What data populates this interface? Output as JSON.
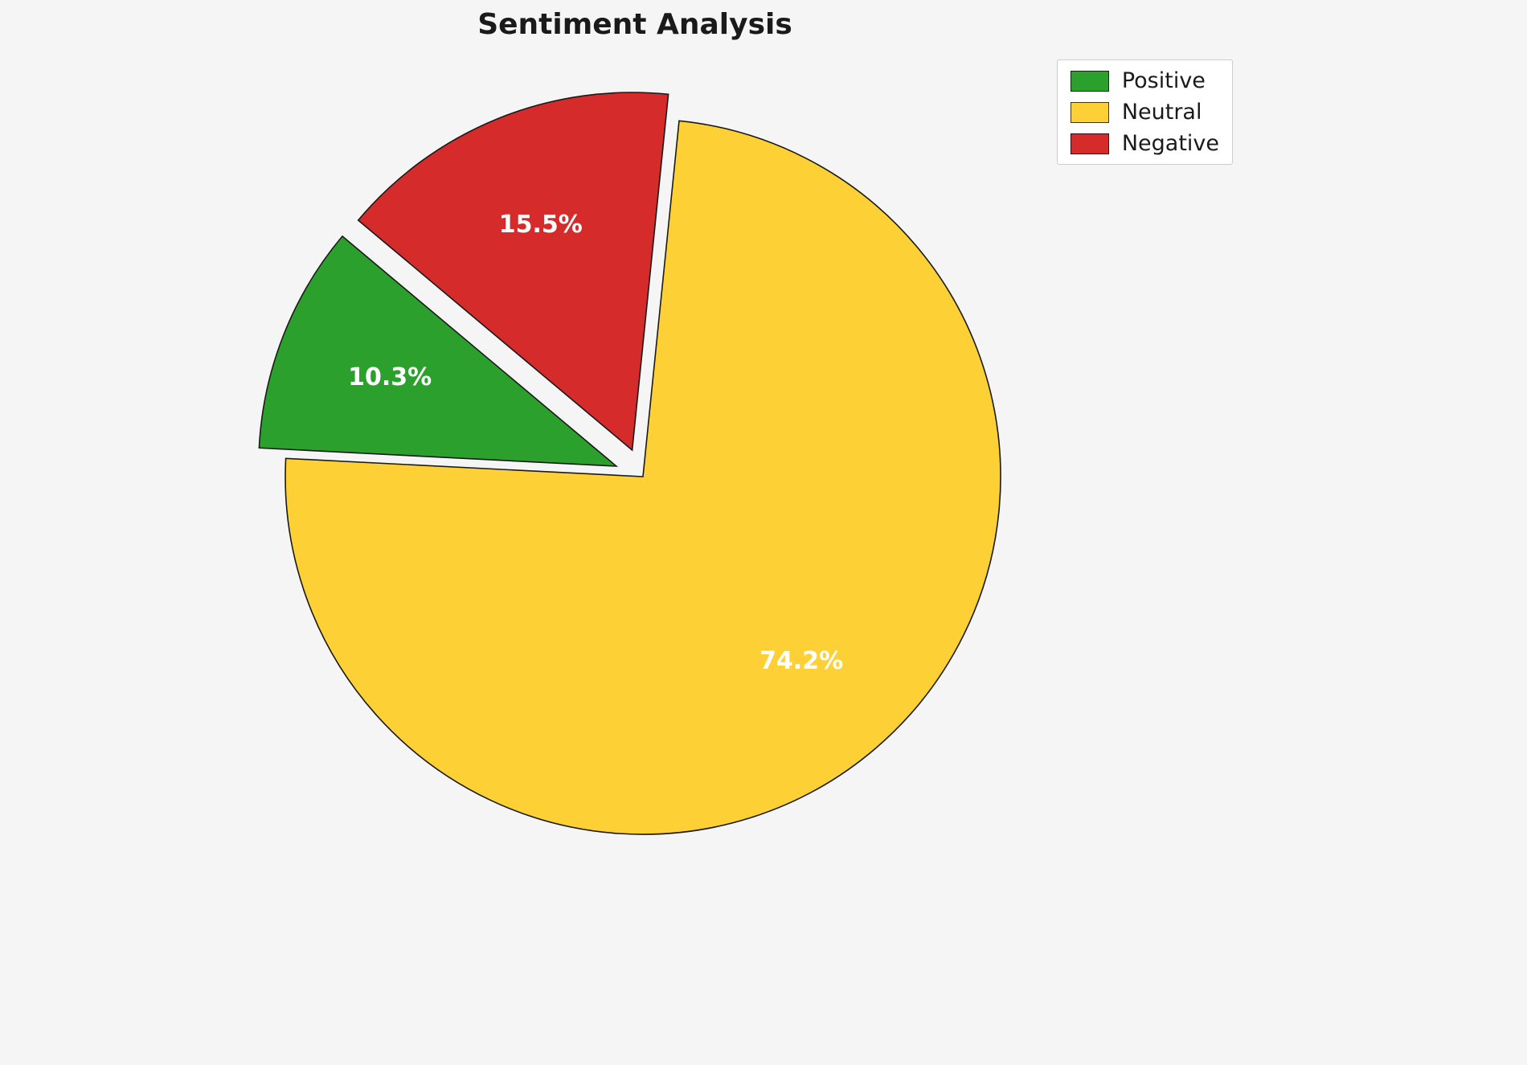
{
  "chart_data": {
    "type": "pie",
    "title": "Sentiment Analysis",
    "labels": [
      "Positive",
      "Neutral",
      "Negative"
    ],
    "values": [
      10.3,
      74.2,
      15.5
    ],
    "pct_labels": [
      "10.3%",
      "74.2%",
      "15.5%"
    ],
    "colors": [
      "#2ca02c",
      "#fdd135",
      "#d62b2b"
    ],
    "explode": [
      0.08,
      0,
      0.08
    ],
    "start_angle": 140,
    "direction": "counterclockwise",
    "pct_distance": 0.68,
    "label_color": "#ffffff",
    "edge_color": "#1a1a1a",
    "background": "#f5f5f5",
    "legend_position": "upper right",
    "legend_entries": [
      "Positive",
      "Neutral",
      "Negative"
    ]
  }
}
